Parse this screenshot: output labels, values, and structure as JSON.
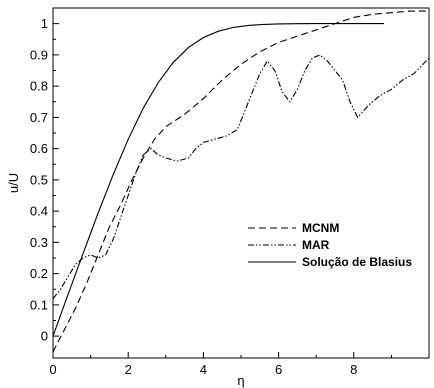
{
  "chart_data": {
    "type": "line",
    "title": "",
    "xlabel": "η",
    "ylabel": "u/U",
    "xlim": [
      0,
      10
    ],
    "ylim": [
      -0.07,
      1.05
    ],
    "grid": false,
    "legend_position": "right",
    "x_ticks": [
      0,
      2,
      4,
      6,
      8
    ],
    "x_tick_labels": [
      "0",
      "2",
      "4",
      "6",
      "8"
    ],
    "y_ticks": [
      0,
      0.1,
      0.2,
      0.3,
      0.4,
      0.5,
      0.6,
      0.7,
      0.8,
      0.9,
      1
    ],
    "y_tick_labels": [
      "0",
      "0.1",
      "0.2",
      "0.3",
      "0.4",
      "0.5",
      "0.6",
      "0.7",
      "0.8",
      "0.9",
      "1"
    ],
    "series": [
      {
        "name": "MCNM",
        "style": "dashed",
        "x": [
          0,
          0.3,
          0.6,
          0.9,
          1.2,
          1.5,
          1.8,
          2.1,
          2.4,
          2.7,
          3.0,
          3.5,
          4.0,
          4.5,
          5.0,
          5.5,
          6.0,
          6.5,
          7.0,
          7.5,
          8.0,
          8.5,
          9.0,
          9.5,
          10.0
        ],
        "y": [
          -0.05,
          0.02,
          0.09,
          0.17,
          0.26,
          0.35,
          0.42,
          0.5,
          0.57,
          0.63,
          0.67,
          0.71,
          0.76,
          0.82,
          0.87,
          0.91,
          0.94,
          0.96,
          0.98,
          1.0,
          1.02,
          1.03,
          1.035,
          1.04,
          1.04
        ]
      },
      {
        "name": "MAR",
        "style": "dashdotdot",
        "x": [
          0,
          0.2,
          0.4,
          0.6,
          0.8,
          1.0,
          1.2,
          1.4,
          1.6,
          1.8,
          2.0,
          2.2,
          2.4,
          2.6,
          2.8,
          3.0,
          3.3,
          3.6,
          3.8,
          4.0,
          4.3,
          4.6,
          4.9,
          5.2,
          5.5,
          5.7,
          5.9,
          6.1,
          6.3,
          6.5,
          6.7,
          6.9,
          7.1,
          7.3,
          7.5,
          7.7,
          7.9,
          8.1,
          8.4,
          8.7,
          9.0,
          9.3,
          9.6,
          10.0
        ],
        "y": [
          0.12,
          0.15,
          0.19,
          0.23,
          0.25,
          0.26,
          0.25,
          0.26,
          0.31,
          0.38,
          0.45,
          0.52,
          0.58,
          0.6,
          0.58,
          0.57,
          0.56,
          0.57,
          0.6,
          0.62,
          0.63,
          0.64,
          0.66,
          0.75,
          0.84,
          0.88,
          0.85,
          0.78,
          0.75,
          0.79,
          0.85,
          0.89,
          0.9,
          0.88,
          0.85,
          0.82,
          0.75,
          0.7,
          0.74,
          0.77,
          0.79,
          0.82,
          0.84,
          0.89
        ]
      },
      {
        "name": "Solução de Blasius",
        "style": "solid",
        "x": [
          0,
          0.4,
          0.8,
          1.2,
          1.6,
          2.0,
          2.4,
          2.8,
          3.2,
          3.6,
          4.0,
          4.4,
          4.8,
          5.2,
          5.6,
          6.0,
          6.5,
          7.0,
          7.5,
          8.0,
          8.5,
          8.8
        ],
        "y": [
          0,
          0.1328,
          0.2647,
          0.3938,
          0.5168,
          0.6298,
          0.729,
          0.8115,
          0.8761,
          0.9233,
          0.9555,
          0.9759,
          0.9878,
          0.9943,
          0.9975,
          0.999,
          0.9997,
          1.0,
          1.0,
          1.0,
          1.0,
          1.0
        ]
      }
    ]
  }
}
